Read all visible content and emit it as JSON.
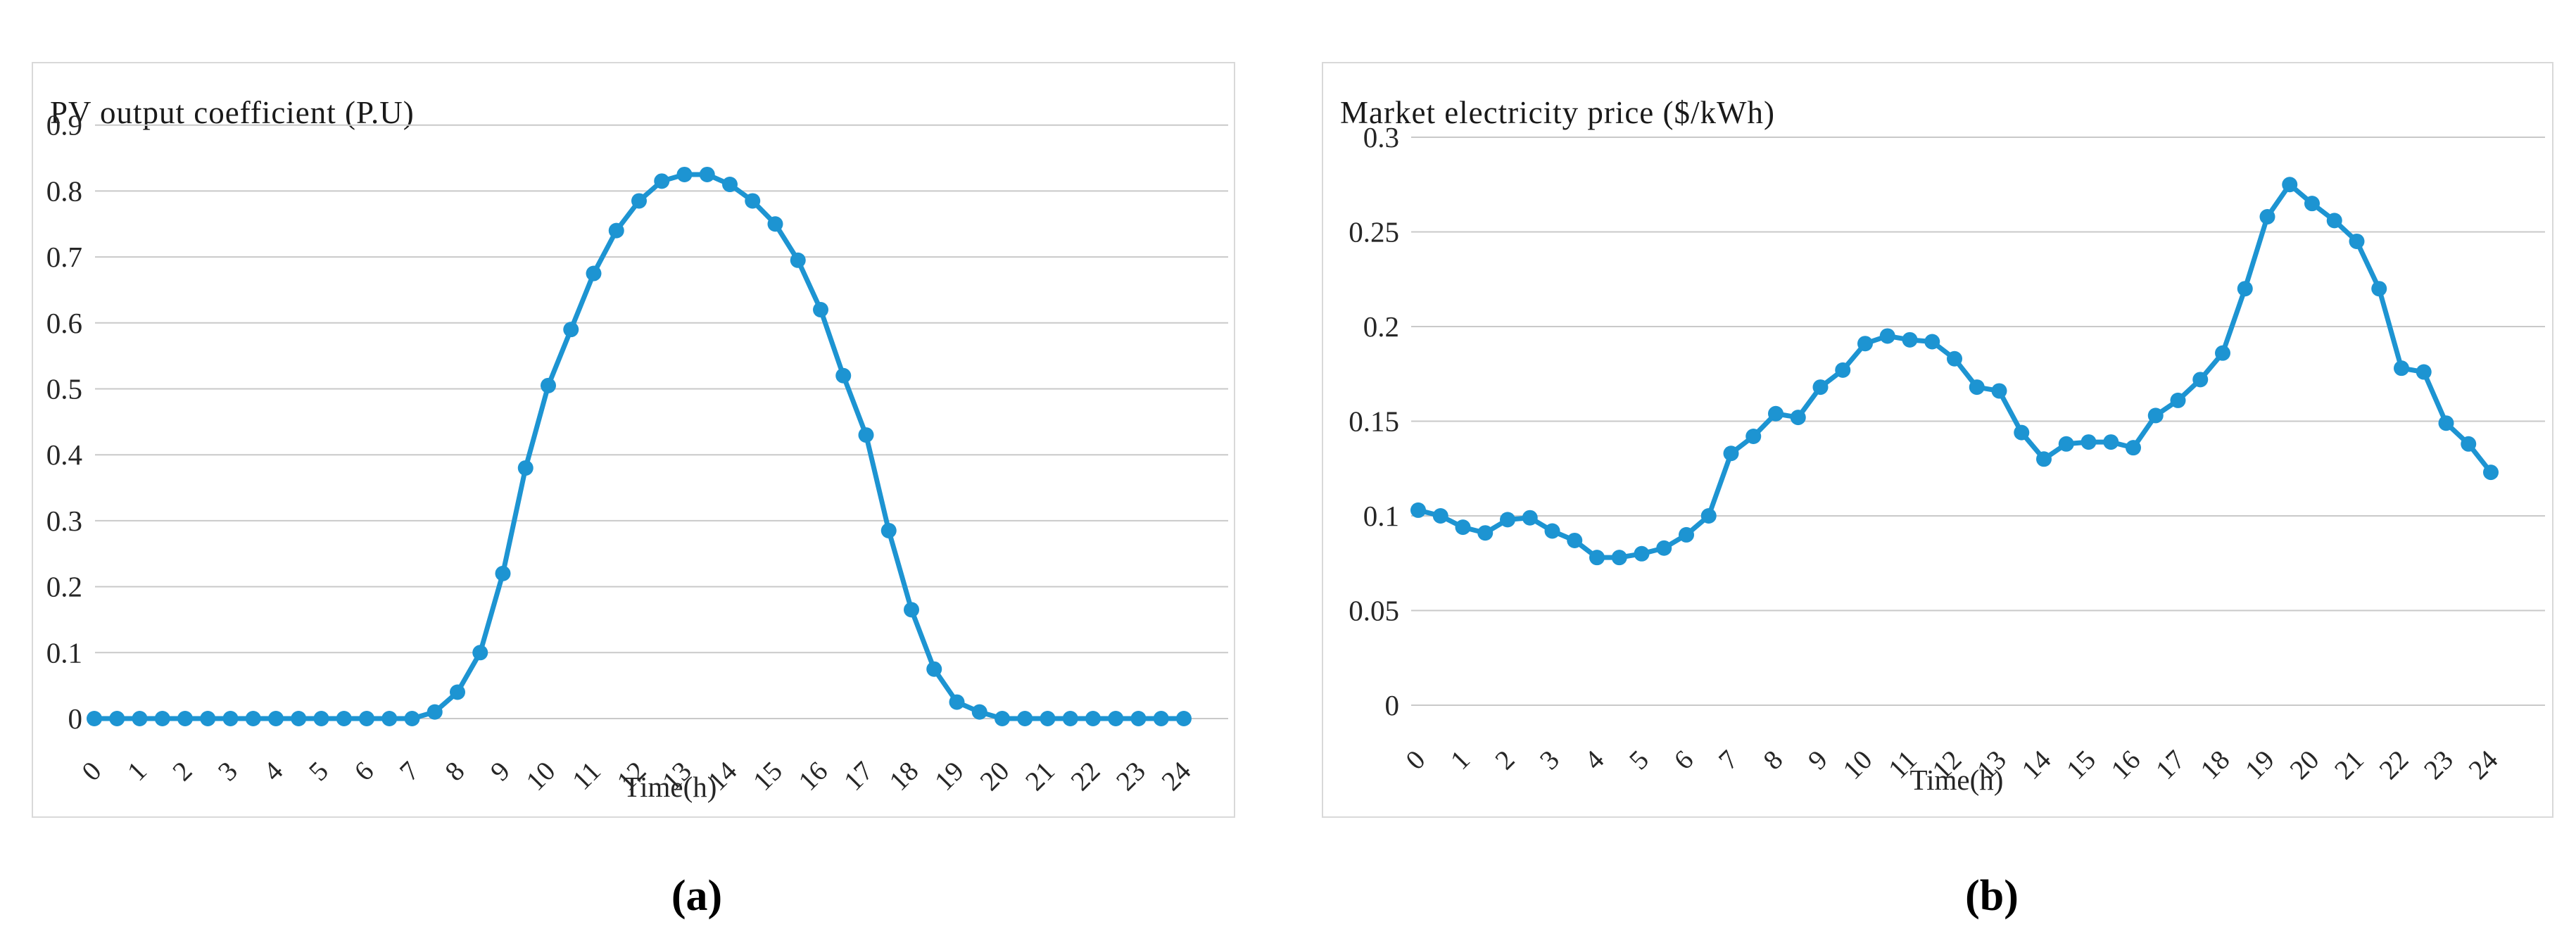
{
  "figure": {
    "captions": {
      "a": "(a)",
      "b": "(b)"
    }
  },
  "colors": {
    "line": "#1d94d2",
    "gridline": "#c9c9c9",
    "panel_border": "#d9d9d9",
    "text": "#262626"
  },
  "chart_data": [
    {
      "id": "pv",
      "type": "line",
      "title": "PV output coefficient (P.U)",
      "xlabel": "Time(h)",
      "ylabel": "",
      "legend": "none",
      "grid": true,
      "marker": "circle",
      "xlim": [
        0,
        24
      ],
      "ylim": [
        0,
        0.95
      ],
      "x_tick_labels": [
        "0",
        "1",
        "2",
        "3",
        "4",
        "5",
        "6",
        "7",
        "8",
        "9",
        "10",
        "11",
        "12",
        "13",
        "14",
        "15",
        "16",
        "17",
        "18",
        "19",
        "20",
        "21",
        "22",
        "23",
        "24"
      ],
      "y_tick_labels": [
        "0",
        "0.1",
        "0.2",
        "0.3",
        "0.4",
        "0.5",
        "0.6",
        "0.7",
        "0.8",
        "0.9"
      ],
      "x": [
        0,
        0.5,
        1,
        1.5,
        2,
        2.5,
        3,
        3.5,
        4,
        4.5,
        5,
        5.5,
        6,
        6.5,
        7,
        7.5,
        8,
        8.5,
        9,
        9.5,
        10,
        10.5,
        11,
        11.5,
        12,
        12.5,
        13,
        13.5,
        14,
        14.5,
        15,
        15.5,
        16,
        16.5,
        17,
        17.5,
        18,
        18.5,
        19,
        19.5,
        20,
        20.5,
        21,
        21.5,
        22,
        22.5,
        23,
        23.5,
        24
      ],
      "values": [
        0,
        0,
        0,
        0,
        0,
        0,
        0,
        0,
        0,
        0,
        0,
        0,
        0,
        0,
        0,
        0.01,
        0.04,
        0.1,
        0.22,
        0.38,
        0.505,
        0.59,
        0.675,
        0.74,
        0.785,
        0.815,
        0.825,
        0.825,
        0.81,
        0.785,
        0.75,
        0.695,
        0.62,
        0.52,
        0.43,
        0.285,
        0.165,
        0.075,
        0.025,
        0.01,
        0,
        0,
        0,
        0,
        0,
        0,
        0,
        0,
        0
      ]
    },
    {
      "id": "price",
      "type": "line",
      "title": "Market electricity price ($/kWh)",
      "xlabel": "Time(h)",
      "ylabel": "",
      "legend": "none",
      "grid": true,
      "marker": "circle",
      "xlim": [
        0,
        24
      ],
      "ylim": [
        0,
        0.32
      ],
      "x_tick_labels": [
        "0",
        "1",
        "2",
        "3",
        "4",
        "5",
        "6",
        "7",
        "8",
        "9",
        "10",
        "11",
        "12",
        "13",
        "14",
        "15",
        "16",
        "17",
        "18",
        "19",
        "20",
        "21",
        "22",
        "23",
        "24"
      ],
      "y_tick_labels": [
        "0",
        "0.05",
        "0.1",
        "0.15",
        "0.2",
        "0.25",
        "0.3"
      ],
      "x": [
        0,
        0.5,
        1,
        1.5,
        2,
        2.5,
        3,
        3.5,
        4,
        4.5,
        5,
        5.5,
        6,
        6.5,
        7,
        7.5,
        8,
        8.5,
        9,
        9.5,
        10,
        10.5,
        11,
        11.5,
        12,
        12.5,
        13,
        13.5,
        14,
        14.5,
        15,
        15.5,
        16,
        16.5,
        17,
        17.5,
        18,
        18.5,
        19,
        19.5,
        20,
        20.5,
        21,
        21.5,
        22,
        22.5,
        23,
        23.5,
        24
      ],
      "values": [
        0.103,
        0.1,
        0.094,
        0.091,
        0.098,
        0.099,
        0.092,
        0.087,
        0.078,
        0.078,
        0.08,
        0.083,
        0.09,
        0.1,
        0.133,
        0.142,
        0.154,
        0.152,
        0.168,
        0.177,
        0.191,
        0.195,
        0.193,
        0.192,
        0.183,
        0.168,
        0.166,
        0.144,
        0.13,
        0.138,
        0.139,
        0.139,
        0.136,
        0.153,
        0.161,
        0.172,
        0.186,
        0.22,
        0.258,
        0.275,
        0.265,
        0.256,
        0.245,
        0.22,
        0.178,
        0.176,
        0.149,
        0.138,
        0.123
      ]
    }
  ]
}
